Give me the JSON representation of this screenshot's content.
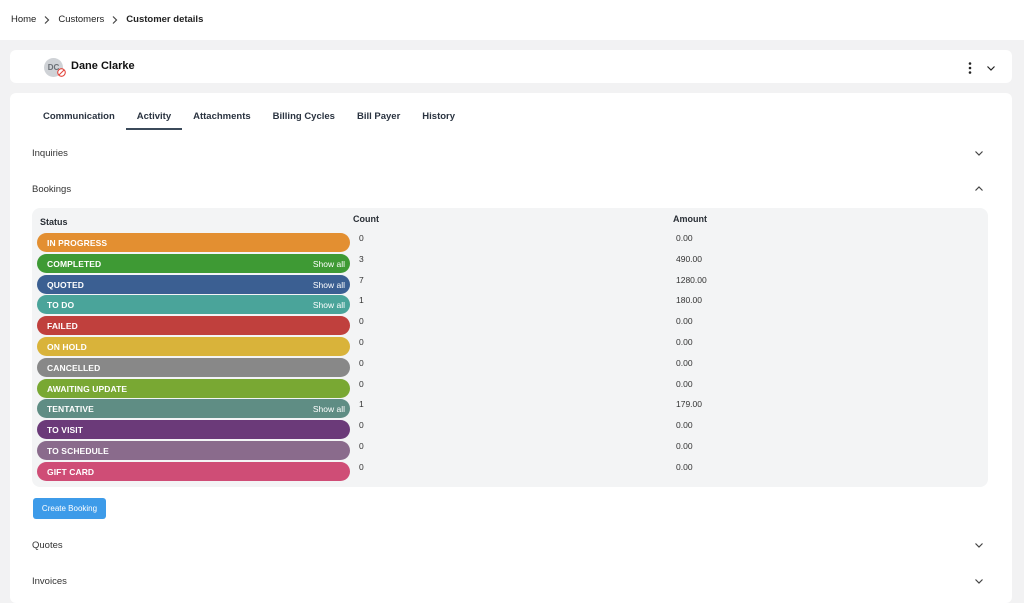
{
  "breadcrumb": {
    "items": [
      "Home",
      "Customers"
    ],
    "current": "Customer details"
  },
  "customer": {
    "initials": "DC",
    "name": "Dane Clarke"
  },
  "tabs": [
    {
      "label": "Communication"
    },
    {
      "label": "Activity",
      "active": true
    },
    {
      "label": "Attachments"
    },
    {
      "label": "Billing Cycles"
    },
    {
      "label": "Bill Payer"
    },
    {
      "label": "History"
    }
  ],
  "sections": {
    "inquiries": "Inquiries",
    "bookings": "Bookings",
    "quotes": "Quotes",
    "invoices": "Invoices"
  },
  "bookings_table": {
    "headers": {
      "status": "Status",
      "count": "Count",
      "amount": "Amount"
    },
    "show_all_label": "Show all",
    "rows": [
      {
        "status": "IN PROGRESS",
        "count": "0",
        "amount": "0.00",
        "color": "#e38f31",
        "show_all": false
      },
      {
        "status": "COMPLETED",
        "count": "3",
        "amount": "490.00",
        "color": "#3e9a34",
        "show_all": true
      },
      {
        "status": "QUOTED",
        "count": "7",
        "amount": "1280.00",
        "color": "#3b5f92",
        "show_all": true
      },
      {
        "status": "TO DO",
        "count": "1",
        "amount": "180.00",
        "color": "#4aa49a",
        "show_all": true
      },
      {
        "status": "FAILED",
        "count": "0",
        "amount": "0.00",
        "color": "#c0403d",
        "show_all": false
      },
      {
        "status": "ON HOLD",
        "count": "0",
        "amount": "0.00",
        "color": "#d9b33a",
        "show_all": false
      },
      {
        "status": "CANCELLED",
        "count": "0",
        "amount": "0.00",
        "color": "#888888",
        "show_all": false
      },
      {
        "status": "AWAITING UPDATE",
        "count": "0",
        "amount": "0.00",
        "color": "#79a833",
        "show_all": false
      },
      {
        "status": "TENTATIVE",
        "count": "1",
        "amount": "179.00",
        "color": "#5f8d84",
        "show_all": true
      },
      {
        "status": "TO VISIT",
        "count": "0",
        "amount": "0.00",
        "color": "#6b3a79",
        "show_all": false
      },
      {
        "status": "TO SCHEDULE",
        "count": "0",
        "amount": "0.00",
        "color": "#8a6b8c",
        "show_all": false
      },
      {
        "status": "GIFT CARD",
        "count": "0",
        "amount": "0.00",
        "color": "#cf4d76",
        "show_all": false
      }
    ]
  },
  "create_booking_label": "Create Booking",
  "icons": {
    "breadcrumb_sep": "chevron-right-icon",
    "avatar_badge": "blocked-icon",
    "menu": "more-vertical-icon",
    "collapse": "chevron-down-icon"
  }
}
